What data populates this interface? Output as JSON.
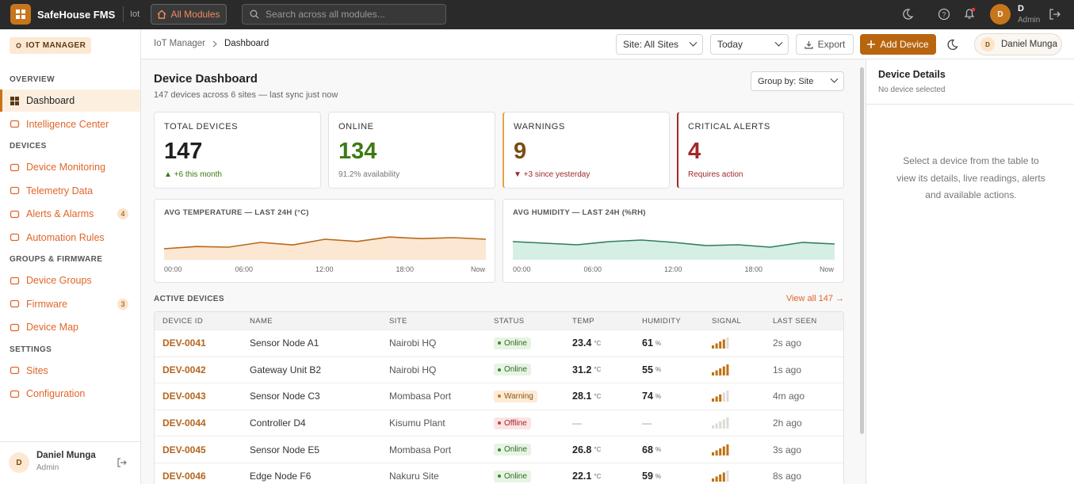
{
  "topbar": {
    "brand": "SafeHouse FMS",
    "module": "Iot",
    "all_modules": "All Modules",
    "search_placeholder": "Search across all modules...",
    "avatar": "D",
    "user": "D",
    "role": "Admin"
  },
  "sidebar": {
    "badge": "IOT MANAGER",
    "sections": [
      {
        "title": "OVERVIEW",
        "items": [
          {
            "label": "Dashboard",
            "active": true
          },
          {
            "label": "Intelligence Center"
          }
        ]
      },
      {
        "title": "DEVICES",
        "items": [
          {
            "label": "Device Monitoring"
          },
          {
            "label": "Telemetry Data"
          },
          {
            "label": "Alerts & Alarms",
            "badge": 4
          },
          {
            "label": "Automation Rules"
          }
        ]
      },
      {
        "title": "GROUPS & FIRMWARE",
        "items": [
          {
            "label": "Device Groups"
          },
          {
            "label": "Firmware",
            "badge": 3
          },
          {
            "label": "Device Map"
          }
        ]
      },
      {
        "title": "SETTINGS",
        "items": [
          {
            "label": "Sites"
          },
          {
            "label": "Configuration"
          }
        ]
      }
    ],
    "footer": {
      "avatar": "D",
      "name": "Daniel Munga",
      "role": "Admin"
    }
  },
  "toolbar": {
    "breadcrumb": [
      "IoT Manager",
      "Dashboard"
    ],
    "site_filter": "Site: All Sites",
    "period": "Today",
    "export": "Export",
    "add_device": "Add Device",
    "avatar": "D",
    "user": "Daniel Munga"
  },
  "header": {
    "title": "Device Dashboard",
    "subtitle": "147 devices across 6 sites — last sync just now",
    "group_by": "Group by: Site"
  },
  "kpis": [
    {
      "label": "TOTAL DEVICES",
      "value": 147,
      "note": "▲ +6 this month",
      "color": "#1f1f1f"
    },
    {
      "label": "ONLINE",
      "value": 134,
      "note": "91.2% availability",
      "color": "#3d7a14"
    },
    {
      "label": "WARNINGS",
      "value": 9,
      "note": "▼ +3 since yesterday",
      "color": "#7a4d12",
      "border": "#e3a447"
    },
    {
      "label": "CRITICAL ALERTS",
      "value": 4,
      "note": "Requires action",
      "color": "#a12828",
      "border": "#a12828"
    }
  ],
  "charts": [
    {
      "type": "area",
      "title": "AVG TEMPERATURE — LAST 24H (°C)",
      "xticks": [
        "00:00",
        "06:00",
        "12:00",
        "18:00",
        "Now"
      ],
      "values": [
        21.5,
        22.2,
        22.0,
        23.5,
        22.7,
        24.5,
        23.8,
        25.2,
        24.7,
        25.0,
        24.5
      ],
      "ylim": [
        18,
        28
      ],
      "color": "#b8681a",
      "fill": "#fbe7d2"
    },
    {
      "type": "area",
      "title": "AVG HUMIDITY — LAST 24H (%RH)",
      "xticks": [
        "00:00",
        "06:00",
        "12:00",
        "18:00",
        "Now"
      ],
      "values": [
        61.5,
        60.5,
        59.5,
        61.5,
        62.5,
        61,
        59,
        59.5,
        58,
        61,
        60
      ],
      "ylim": [
        50,
        70
      ],
      "color": "#2e7d5b",
      "fill": "#d6efe4"
    }
  ],
  "table": {
    "title": "ACTIVE DEVICES",
    "view_all": "View all 147 →",
    "columns": [
      "DEVICE ID",
      "NAME",
      "SITE",
      "STATUS",
      "TEMP",
      "HUMIDITY",
      "SIGNAL",
      "LAST SEEN"
    ],
    "temp_unit": "°C",
    "humidity_unit": "%",
    "signal_max": 5,
    "rows": [
      {
        "id": "DEV-0041",
        "name": "Sensor Node A1",
        "site": "Nairobi HQ",
        "status": "Online",
        "temp": 23.4,
        "humidity": 61,
        "signal": 4,
        "last_seen": "2s ago"
      },
      {
        "id": "DEV-0042",
        "name": "Gateway Unit B2",
        "site": "Nairobi HQ",
        "status": "Online",
        "temp": 31.2,
        "humidity": 55,
        "signal": 5,
        "last_seen": "1s ago"
      },
      {
        "id": "DEV-0043",
        "name": "Sensor Node C3",
        "site": "Mombasa Port",
        "status": "Warning",
        "temp": 28.1,
        "humidity": 74,
        "signal": 3,
        "last_seen": "4m ago"
      },
      {
        "id": "DEV-0044",
        "name": "Controller D4",
        "site": "Kisumu Plant",
        "status": "Offline",
        "temp": "—",
        "humidity": "—",
        "signal": 0,
        "last_seen": "2h ago"
      },
      {
        "id": "DEV-0045",
        "name": "Sensor Node E5",
        "site": "Mombasa Port",
        "status": "Online",
        "temp": 26.8,
        "humidity": 68,
        "signal": 5,
        "last_seen": "3s ago"
      },
      {
        "id": "DEV-0046",
        "name": "Edge Node F6",
        "site": "Nakuru Site",
        "status": "Online",
        "temp": 22.1,
        "humidity": 59,
        "signal": 4,
        "last_seen": "8s ago"
      }
    ]
  },
  "details": {
    "title": "Device Details",
    "subtitle": "No device selected",
    "empty": "Select a device from the table to view its details, live readings, alerts and available actions."
  }
}
